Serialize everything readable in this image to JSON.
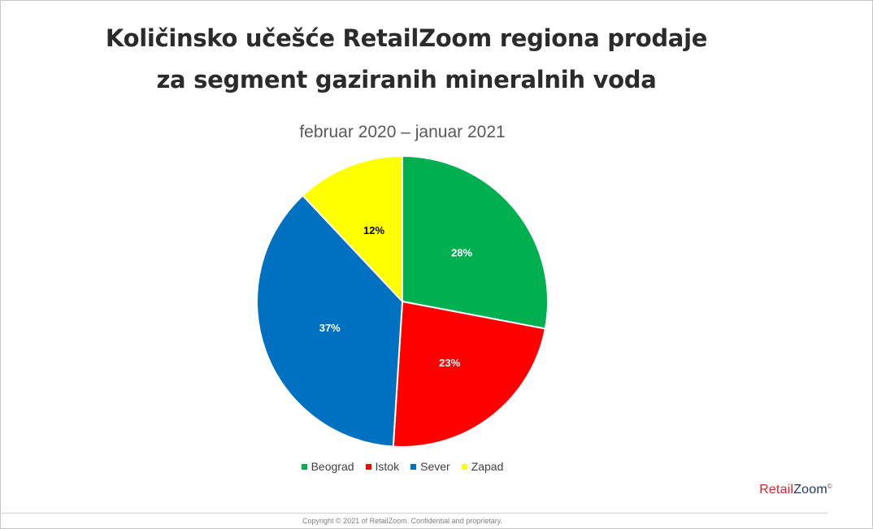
{
  "title_line1": "Količinsko učešće RetailZoom regiona prodaje",
  "title_line2": "za segment gaziranih mineralnih voda",
  "subtitle": "februar 2020 – januar 2021",
  "chart_data": {
    "type": "pie",
    "title": "Količinsko učešće RetailZoom regiona prodaje za segment gaziranih mineralnih voda",
    "subtitle": "februar 2020 – januar 2021",
    "categories": [
      "Beograd",
      "Istok",
      "Sever",
      "Zapad"
    ],
    "values": [
      28,
      23,
      37,
      12
    ],
    "labels": [
      "28%",
      "23%",
      "37%",
      "12%"
    ],
    "colors": [
      "#00b050",
      "#ff0000",
      "#0070c0",
      "#ffff00"
    ],
    "label_colors": [
      "#ffffff",
      "#ffffff",
      "#ffffff",
      "#000000"
    ],
    "start": "top, clockwise",
    "legend_position": "bottom"
  },
  "legend": [
    {
      "label": "Beograd",
      "color": "#00b050"
    },
    {
      "label": "Istok",
      "color": "#ff0000"
    },
    {
      "label": "Sever",
      "color": "#0070c0"
    },
    {
      "label": "Zapad",
      "color": "#ffff00"
    }
  ],
  "brand": {
    "retail": "Retail",
    "zoom": "Zoom",
    "mark": "©",
    "retail_color": "#d9262c",
    "zoom_color": "#1f3864"
  },
  "footer": "Copyright © 2021 of RetailZoom. Confidential and proprietary."
}
